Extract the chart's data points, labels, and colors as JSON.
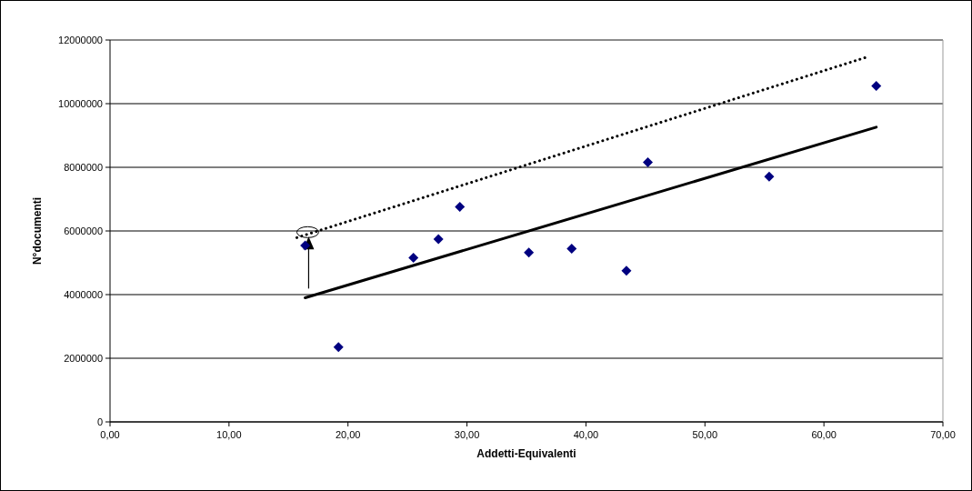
{
  "chart_data": {
    "type": "scatter",
    "xlabel": "Addetti-Equivalenti",
    "ylabel": "N°documenti",
    "xlim": [
      0,
      70
    ],
    "xticks": [
      {
        "value": 0,
        "label": "0,00"
      },
      {
        "value": 10,
        "label": "10,00"
      },
      {
        "value": 20,
        "label": "20,00"
      },
      {
        "value": 30,
        "label": "30,00"
      },
      {
        "value": 40,
        "label": "40,00"
      },
      {
        "value": 50,
        "label": "50,00"
      },
      {
        "value": 60,
        "label": "60,00"
      },
      {
        "value": 70,
        "label": "70,00"
      }
    ],
    "ylim": [
      0,
      12000000
    ],
    "yticks": [
      0,
      2000000,
      4000000,
      6000000,
      8000000,
      10000000,
      12000000
    ],
    "grid": "y",
    "marker": "diamond",
    "series": [
      {
        "color": "#000080",
        "x": [
          16.4,
          19.2,
          25.5,
          27.6,
          29.4,
          35.2,
          38.8,
          43.4,
          45.2,
          55.4,
          64.4
        ],
        "values": [
          5540000,
          2350000,
          5160000,
          5740000,
          6760000,
          5320000,
          5440000,
          4750000,
          8160000,
          7710000,
          10560000
        ]
      },
      {
        "type": "line",
        "color": "#000000",
        "line_style": "solid",
        "marker": "none",
        "x": [
          16.4,
          64.4
        ],
        "values": [
          3900000,
          9260000
        ]
      },
      {
        "type": "line",
        "color": "#000000",
        "line_style": "dotted",
        "marker": "none",
        "x": [
          15.7,
          63.5
        ],
        "values": [
          5790000,
          11450000
        ]
      }
    ]
  }
}
